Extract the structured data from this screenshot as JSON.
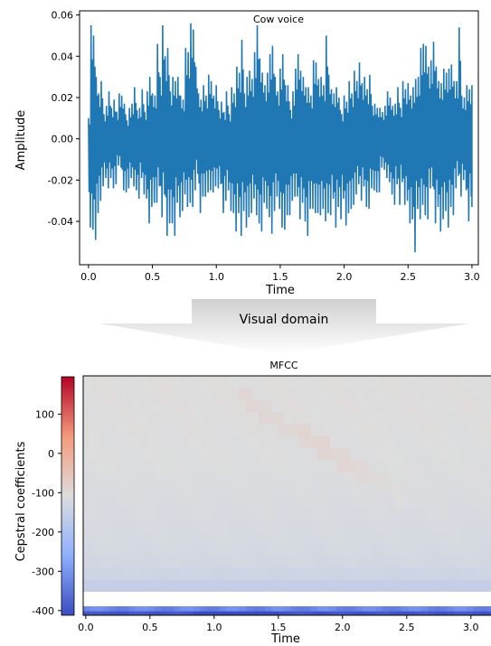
{
  "banner": {
    "label": "Visual domain"
  },
  "chart_data": [
    {
      "type": "line",
      "title": "Cow voice",
      "xlabel": "Time",
      "ylabel": "Amplitude",
      "xlim": [
        -0.07,
        3.05
      ],
      "ylim": [
        -0.061,
        0.062
      ],
      "xticks": [
        "0.0",
        "0.5",
        "1.0",
        "1.5",
        "2.0",
        "2.5",
        "3.0"
      ],
      "yticks": [
        "-0.04",
        "-0.02",
        "0.00",
        "0.02",
        "0.04",
        "0.06"
      ],
      "series": [
        {
          "color": "#1f77b4",
          "x": [
            0.0,
            0.02,
            0.04,
            0.06,
            0.08,
            0.1,
            0.12,
            0.14,
            0.16,
            0.18,
            0.2,
            0.22,
            0.24,
            0.26,
            0.28,
            0.3,
            0.32,
            0.34,
            0.36,
            0.38,
            0.4,
            0.42,
            0.44,
            0.46,
            0.48,
            0.5,
            0.52,
            0.54,
            0.56,
            0.58,
            0.6,
            0.62,
            0.64,
            0.66,
            0.68,
            0.7,
            0.72,
            0.74,
            0.76,
            0.78,
            0.8,
            0.82,
            0.84,
            0.86,
            0.88,
            0.9,
            0.92,
            0.94,
            0.96,
            0.98,
            1.0,
            1.02,
            1.04,
            1.06,
            1.08,
            1.1,
            1.12,
            1.14,
            1.16,
            1.18,
            1.2,
            1.22,
            1.24,
            1.26,
            1.28,
            1.3,
            1.32,
            1.34,
            1.36,
            1.38,
            1.4,
            1.42,
            1.44,
            1.46,
            1.48,
            1.5,
            1.52,
            1.54,
            1.56,
            1.58,
            1.6,
            1.62,
            1.64,
            1.66,
            1.68,
            1.7,
            1.72,
            1.74,
            1.76,
            1.78,
            1.8,
            1.82,
            1.84,
            1.86,
            1.88,
            1.9,
            1.92,
            1.94,
            1.96,
            1.98,
            2.0,
            2.02,
            2.04,
            2.06,
            2.08,
            2.1,
            2.12,
            2.14,
            2.16,
            2.18,
            2.2,
            2.22,
            2.24,
            2.26,
            2.28,
            2.3,
            2.32,
            2.34,
            2.36,
            2.38,
            2.4,
            2.42,
            2.44,
            2.46,
            2.48,
            2.5,
            2.52,
            2.54,
            2.56,
            2.58,
            2.6,
            2.62,
            2.64,
            2.66,
            2.68,
            2.7,
            2.72,
            2.74,
            2.76,
            2.78,
            2.8,
            2.82,
            2.84,
            2.86,
            2.88,
            2.9,
            2.92,
            2.94,
            2.96,
            2.98,
            3.0
          ],
          "max": [
            0.01,
            0.055,
            0.05,
            0.03,
            0.022,
            0.028,
            0.012,
            0.016,
            0.023,
            0.015,
            0.019,
            0.013,
            0.022,
            0.021,
            0.017,
            0.009,
            0.015,
            0.017,
            0.025,
            0.014,
            0.015,
            0.024,
            0.013,
            0.023,
            0.03,
            0.022,
            0.021,
            0.046,
            0.03,
            0.055,
            0.04,
            0.044,
            0.023,
            0.03,
            0.028,
            0.03,
            0.021,
            0.019,
            0.044,
            0.042,
            0.056,
            0.053,
            0.035,
            0.022,
            0.019,
            0.026,
            0.021,
            0.031,
            0.028,
            0.021,
            0.026,
            0.014,
            0.018,
            0.013,
            0.023,
            0.012,
            0.025,
            0.022,
            0.035,
            0.032,
            0.048,
            0.022,
            0.03,
            0.033,
            0.029,
            0.042,
            0.055,
            0.039,
            0.032,
            0.026,
            0.032,
            0.041,
            0.045,
            0.03,
            0.023,
            0.034,
            0.041,
            0.026,
            0.026,
            0.014,
            0.023,
            0.034,
            0.041,
            0.033,
            0.03,
            0.025,
            0.025,
            0.021,
            0.038,
            0.037,
            0.029,
            0.03,
            0.026,
            0.05,
            0.031,
            0.024,
            0.022,
            0.025,
            0.02,
            0.012,
            0.021,
            0.018,
            0.028,
            0.022,
            0.033,
            0.028,
            0.037,
            0.027,
            0.03,
            0.024,
            0.031,
            0.016,
            0.017,
            0.015,
            0.015,
            0.013,
            0.016,
            0.023,
            0.02,
            0.016,
            0.017,
            0.025,
            0.015,
            0.028,
            0.024,
            0.027,
            0.021,
            0.025,
            0.029,
            0.03,
            0.044,
            0.046,
            0.045,
            0.035,
            0.038,
            0.047,
            0.035,
            0.028,
            0.027,
            0.034,
            0.032,
            0.034,
            0.036,
            0.028,
            0.028,
            0.054,
            0.021,
            0.02,
            0.026,
            0.024,
            0.026
          ],
          "min": [
            -0.043,
            -0.044,
            -0.049,
            -0.036,
            -0.03,
            -0.023,
            -0.019,
            -0.024,
            -0.019,
            -0.024,
            -0.022,
            -0.013,
            -0.014,
            -0.025,
            -0.026,
            -0.024,
            -0.019,
            -0.023,
            -0.025,
            -0.029,
            -0.019,
            -0.027,
            -0.029,
            -0.041,
            -0.033,
            -0.031,
            -0.031,
            -0.023,
            -0.038,
            -0.027,
            -0.047,
            -0.041,
            -0.041,
            -0.047,
            -0.031,
            -0.038,
            -0.035,
            -0.027,
            -0.033,
            -0.031,
            -0.033,
            -0.025,
            -0.017,
            -0.036,
            -0.028,
            -0.028,
            -0.026,
            -0.025,
            -0.026,
            -0.023,
            -0.024,
            -0.022,
            -0.036,
            -0.03,
            -0.025,
            -0.035,
            -0.036,
            -0.045,
            -0.036,
            -0.047,
            -0.035,
            -0.043,
            -0.038,
            -0.036,
            -0.029,
            -0.037,
            -0.041,
            -0.045,
            -0.031,
            -0.034,
            -0.038,
            -0.046,
            -0.035,
            -0.028,
            -0.034,
            -0.043,
            -0.044,
            -0.037,
            -0.037,
            -0.03,
            -0.028,
            -0.028,
            -0.039,
            -0.031,
            -0.04,
            -0.047,
            -0.034,
            -0.034,
            -0.036,
            -0.036,
            -0.037,
            -0.034,
            -0.04,
            -0.036,
            -0.037,
            -0.029,
            -0.043,
            -0.033,
            -0.039,
            -0.029,
            -0.042,
            -0.036,
            -0.034,
            -0.032,
            -0.027,
            -0.022,
            -0.03,
            -0.023,
            -0.033,
            -0.034,
            -0.024,
            -0.025,
            -0.026,
            -0.026,
            -0.014,
            -0.015,
            -0.019,
            -0.021,
            -0.027,
            -0.032,
            -0.022,
            -0.032,
            -0.021,
            -0.032,
            -0.03,
            -0.041,
            -0.039,
            -0.055,
            -0.034,
            -0.039,
            -0.032,
            -0.037,
            -0.039,
            -0.024,
            -0.023,
            -0.041,
            -0.033,
            -0.045,
            -0.039,
            -0.035,
            -0.043,
            -0.033,
            -0.037,
            -0.024,
            -0.018,
            -0.028,
            -0.02,
            -0.025,
            -0.04,
            -0.028,
            -0.033
          ]
        }
      ]
    },
    {
      "type": "heatmap",
      "title": "MFCC",
      "xlabel": "Time",
      "ylabel": "Cepstral coefficients",
      "xlim": [
        -0.02,
        3.22
      ],
      "xticks": [
        "0.0",
        "0.5",
        "1.0",
        "1.5",
        "2.0",
        "2.5",
        "3.0"
      ],
      "colorbar": {
        "ticks": [
          "100",
          "0",
          "-100",
          "-200",
          "-300",
          "-400"
        ],
        "range": [
          -412,
          195
        ],
        "colormap": "coolwarm"
      },
      "rows": 20,
      "cols": 64,
      "levels": [
        -390,
        -290,
        -65,
        -42,
        -30,
        -25,
        -20,
        -18,
        -15,
        -12,
        -10,
        -8,
        -6,
        -5,
        -4,
        -3,
        -3,
        -2,
        -2,
        -2
      ],
      "ridge": {
        "x": [
          1.2,
          1.6,
          2.1,
          2.5
        ],
        "level": [
          18,
          15,
          12,
          9
        ],
        "delta": 12
      }
    }
  ]
}
